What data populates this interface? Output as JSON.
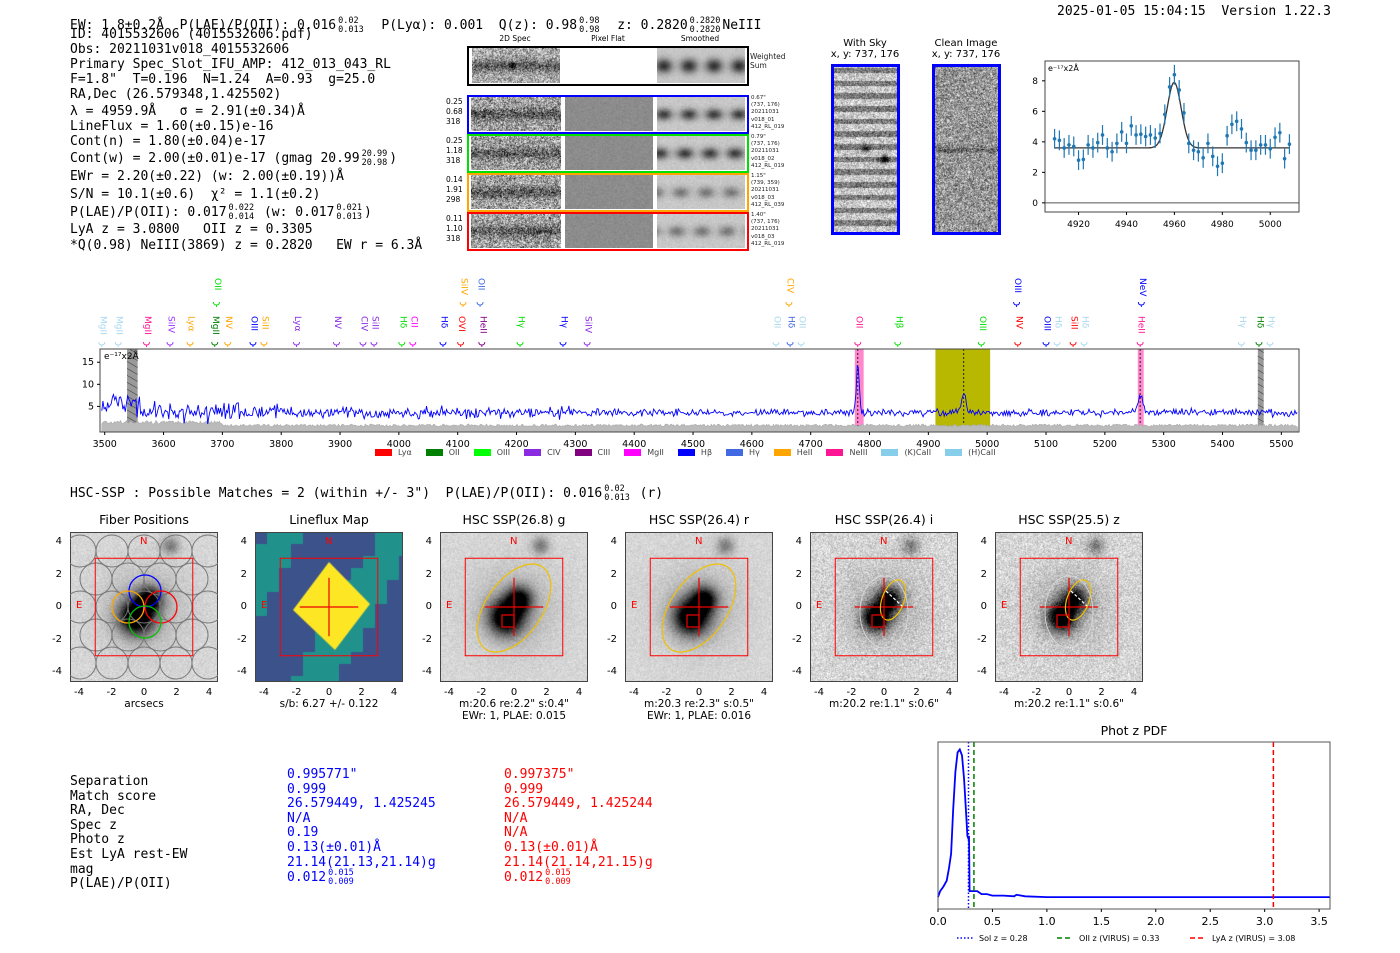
{
  "header": {
    "ew": "EW: 1.8±0.2Å",
    "plae_label": "P(LAE)/P(OII): 0.016",
    "plae_hi": "0.02",
    "plae_lo": "0.013",
    "plya": "P(Lyα): 0.001",
    "qz_label": "Q(z): 0.98",
    "qz_hi": "0.98",
    "qz_lo": "0.98",
    "z_label": "z: 0.2820",
    "z_hi": "0.2820",
    "z_lo": "0.2820",
    "line": "NeIII",
    "datetime": "2025-01-05 15:04:15",
    "version": "Version 1.22.3"
  },
  "info": {
    "id": "ID: 4015532606 (4015532606.pdf)",
    "obs": "Obs: 20211031v018_4015532606",
    "primary": "Primary Spec_Slot_IFU_AMP: 412_013_043_RL",
    "params": "F=1.8\"  T=0.196  N=1.24  A=0.93  g=25.0",
    "radec": "RA,Dec (26.579348,1.425502)",
    "lambda": "λ = 4959.9Å   σ = 2.91(±0.34)Å",
    "lineflux": "LineFlux = 1.60(±0.15)e-16",
    "contn": "Cont(n) = 1.80(±0.04)e-17",
    "contw": "Cont(w) = 2.00(±0.01)e-17 (gmag 20.99",
    "contw_hi": "20.99",
    "contw_lo": "20.98",
    "contw_end": ")",
    "ewr": "EWr = 2.20(±0.22) (w: 2.00(±0.19))Å",
    "sn": "S/N = 10.1(±0.6)  χ² = 1.1(±0.2)",
    "plae": "P(LAE)/P(OII): 0.017",
    "plae_hi": "0.022",
    "plae_lo": "0.014",
    "plae_w": "(w: 0.017",
    "plae_w_hi": "0.021",
    "plae_w_lo": "0.013",
    "plae_end": ")",
    "lyaz": "LyA z = 3.0800   OII z = 0.3305",
    "q": "*Q(0.98) NeIII(3869) z = 0.2820   EW r = 6.3Å"
  },
  "spec2d": {
    "col_titles": [
      "2D Spec",
      "Pixel Flat",
      "Smoothed"
    ],
    "weighted_label": "Weighted\nSum",
    "rows": [
      {
        "color": "#0000ff",
        "left": [
          "0.25",
          "0.68",
          "318"
        ],
        "right": [
          "0.67\"",
          "(737, 176)",
          "20211031",
          "v018_01",
          "412_RL_019"
        ]
      },
      {
        "color": "#00e000",
        "left": [
          "0.25",
          "1.18",
          "318"
        ],
        "right": [
          "0.79\"",
          "(737, 176)",
          "20211031",
          "v018_02",
          "412_RL_019"
        ]
      },
      {
        "color": "#ffa500",
        "left": [
          "0.14",
          "1.91",
          "298"
        ],
        "right": [
          "1.15\"",
          "(739, 359)",
          "20211031",
          "v018_03",
          "412_RL_039"
        ]
      },
      {
        "color": "#ff0000",
        "left": [
          "0.11",
          "1.10",
          "318"
        ],
        "right": [
          "1.40\"",
          "(737, 176)",
          "20211031",
          "v018_03",
          "412_RL_019"
        ]
      }
    ]
  },
  "sky": {
    "with_sky": "With Sky\nx, y: 737, 176",
    "clean": "Clean Image\nx, y: 737, 176"
  },
  "zoom_plot": {
    "type": "scatter",
    "ylabel": "e⁻¹⁷x2Å",
    "xlim": [
      4906,
      5012
    ],
    "ylim": [
      -0.6,
      9.3
    ],
    "xticks": [
      4920,
      4940,
      4960,
      4980,
      5000
    ],
    "yticks": [
      0,
      2,
      4,
      6,
      8
    ],
    "x_start": 4910,
    "x_step": 2,
    "y": [
      4.2,
      4.1,
      3.6,
      3.8,
      3.7,
      2.8,
      2.85,
      3.8,
      3.6,
      3.95,
      4.45,
      3.6,
      3.35,
      3.9,
      4.65,
      3.9,
      5.05,
      4.45,
      4.5,
      4.35,
      4.45,
      4.25,
      4.55,
      5.8,
      7.6,
      8.4,
      7.4,
      5.9,
      3.9,
      3.45,
      3.35,
      2.95,
      3.9,
      3.05,
      2.4,
      2.6,
      4.4,
      5.15,
      5.35,
      4.85,
      3.95,
      3.45,
      3.45,
      3.8,
      3.8,
      3.55,
      4.3,
      4.6,
      2.9,
      3.85
    ],
    "yerr": 0.65,
    "fit": {
      "center": 4959.9,
      "sigma": 2.91,
      "continuum": 3.6,
      "peak": 7.9
    }
  },
  "chart_data": [
    {
      "type": "line",
      "title": "",
      "ylabel": "e⁻¹⁷x2Å",
      "xlim": [
        3492,
        5530
      ],
      "ylim": [
        -0.8,
        18
      ],
      "xticks": [
        3500,
        3600,
        3700,
        3800,
        3900,
        4000,
        4100,
        4200,
        4300,
        4400,
        4500,
        4600,
        4700,
        4800,
        4900,
        5000,
        5100,
        5200,
        5300,
        5400,
        5500
      ],
      "yticks": [
        5,
        10,
        15
      ],
      "continuum": 3.6,
      "features": [
        {
          "x": 4780,
          "peak": 14.5
        },
        {
          "x": 4960,
          "peak": 7.5
        },
        {
          "x": 5260,
          "peak": 7.5
        }
      ],
      "shaded": [
        {
          "from": 3538,
          "to": 3556,
          "color": "#999999",
          "hatch": true
        },
        {
          "from": 4775,
          "to": 4790,
          "color": "#ff88cc"
        },
        {
          "from": 4912,
          "to": 5005,
          "color": "#b8b800"
        },
        {
          "from": 5256,
          "to": 5266,
          "color": "#ff88cc"
        },
        {
          "from": 5460,
          "to": 5470,
          "color": "#999999",
          "hatch": true
        }
      ],
      "vlines": [
        4780,
        4960,
        5260
      ],
      "line_labels": [
        {
          "t": "MgII",
          "c": "#a8d8ee",
          "w": 3495,
          "row": 0
        },
        {
          "t": "MgII",
          "c": "#a8d8ee",
          "w": 3523,
          "row": 0
        },
        {
          "t": "MgII",
          "c": "#ff1493",
          "w": 3571,
          "row": 0
        },
        {
          "t": "SiIV",
          "c": "#9b30ff",
          "w": 3611,
          "row": 0
        },
        {
          "t": "Lyα",
          "c": "#ffa500",
          "w": 3645,
          "row": 0
        },
        {
          "t": "MgII",
          "c": "#008000",
          "w": 3687,
          "row": 0
        },
        {
          "t": "OII",
          "c": "#00dd00",
          "w": 3690,
          "row": 1
        },
        {
          "t": "NV",
          "c": "#ffa500",
          "w": 3709,
          "row": 0
        },
        {
          "t": "OIII",
          "c": "#0000ff",
          "w": 3752,
          "row": 0
        },
        {
          "t": "SiII",
          "c": "#ffa500",
          "w": 3769,
          "row": 0
        },
        {
          "t": "Lyα",
          "c": "#8a2be2",
          "w": 3826,
          "row": 0
        },
        {
          "t": "NV",
          "c": "#8a2be2",
          "w": 3894,
          "row": 0
        },
        {
          "t": "CIV",
          "c": "#8a2be2",
          "w": 3939,
          "row": 0
        },
        {
          "t": "SiII",
          "c": "#8a2be2",
          "w": 3956,
          "row": 0
        },
        {
          "t": "Hδ",
          "c": "#00dd00",
          "w": 4005,
          "row": 0
        },
        {
          "t": "CII",
          "c": "#ff00ff",
          "w": 4019,
          "row": 0
        },
        {
          "t": "Hδ",
          "c": "#0000ff",
          "w": 4075,
          "row": 0
        },
        {
          "t": "OVI",
          "c": "#ff0000",
          "w": 4105,
          "row": 0
        },
        {
          "t": "SiIV",
          "c": "#ffa500",
          "w": 4109,
          "row": 1
        },
        {
          "t": "HeII",
          "c": "#800080",
          "w": 4141,
          "row": 0
        },
        {
          "t": "OII",
          "c": "#4169e1",
          "w": 4138,
          "row": 1
        },
        {
          "t": "Hγ",
          "c": "#00dd00",
          "w": 4206,
          "row": 0
        },
        {
          "t": "Hγ",
          "c": "#0000ff",
          "w": 4279,
          "row": 0
        },
        {
          "t": "SiIV",
          "c": "#8a2be2",
          "w": 4320,
          "row": 0
        },
        {
          "t": "OII",
          "c": "#a8d8ee",
          "w": 4641,
          "row": 0
        },
        {
          "t": "Hδ",
          "c": "#4169e1",
          "w": 4665,
          "row": 0
        },
        {
          "t": "OII",
          "c": "#a8d8ee",
          "w": 4678,
          "row": 0
        },
        {
          "t": "CIV",
          "c": "#ffa500",
          "w": 4663,
          "row": 1
        },
        {
          "t": "OII",
          "c": "#ff1493",
          "w": 4780,
          "row": 0
        },
        {
          "t": "Hβ",
          "c": "#00dd00",
          "w": 4848,
          "row": 0
        },
        {
          "t": "OIII",
          "c": "#00dd00",
          "w": 4990,
          "row": 0
        },
        {
          "t": "NV",
          "c": "#ff0000",
          "w": 5052,
          "row": 0
        },
        {
          "t": "OIII",
          "c": "#0000ff",
          "w": 5050,
          "row": 1
        },
        {
          "t": "OIII",
          "c": "#0000ff",
          "w": 5100,
          "row": 0
        },
        {
          "t": "Hδ",
          "c": "#a8d8ee",
          "w": 5115,
          "row": 0
        },
        {
          "t": "SiII",
          "c": "#ff0000",
          "w": 5146,
          "row": 0
        },
        {
          "t": "Hδ",
          "c": "#a8d8ee",
          "w": 5162,
          "row": 0
        },
        {
          "t": "HeII",
          "c": "#ff1493",
          "w": 5260,
          "row": 0
        },
        {
          "t": "NeV",
          "c": "#0000ff",
          "w": 5262,
          "row": 1
        },
        {
          "t": "Hγ",
          "c": "#a8d8ee",
          "w": 5432,
          "row": 0
        },
        {
          "t": "Hδ",
          "c": "#008000",
          "w": 5462,
          "row": 0
        },
        {
          "t": "Hγ",
          "c": "#a8d8ee",
          "w": 5474,
          "row": 0
        }
      ],
      "legend": [
        {
          "label": "Lyα",
          "color": "#ff0000"
        },
        {
          "label": "OII",
          "color": "#008000"
        },
        {
          "label": "OIII",
          "color": "#00ff00"
        },
        {
          "label": "CIV",
          "color": "#8a2be2"
        },
        {
          "label": "CIII",
          "color": "#800080"
        },
        {
          "label": "MgII",
          "color": "#ff00ff"
        },
        {
          "label": "Hβ",
          "color": "#0000ff"
        },
        {
          "label": "Hγ",
          "color": "#4169e1"
        },
        {
          "label": "HeII",
          "color": "#ffa500"
        },
        {
          "label": "NeIII",
          "color": "#ff1493"
        },
        {
          "label": "(K)CaII",
          "color": "#87ceeb"
        },
        {
          "label": "(H)CaII",
          "color": "#87ceeb"
        }
      ],
      "legend_position": "bottom"
    },
    {
      "type": "line",
      "title": "Phot z PDF",
      "xlim": [
        0,
        3.6
      ],
      "ylim": [
        -0.07,
        1.05
      ],
      "xticks": [
        0.0,
        0.5,
        1.0,
        1.5,
        2.0,
        2.5,
        3.0,
        3.5
      ],
      "z": [
        0,
        0.02,
        0.05,
        0.08,
        0.1,
        0.12,
        0.14,
        0.16,
        0.18,
        0.2,
        0.22,
        0.24,
        0.26,
        0.27,
        0.28,
        0.285,
        0.29,
        0.3,
        0.33,
        0.36,
        0.4,
        0.45,
        0.5,
        0.6,
        0.7,
        0.72,
        0.8,
        1.0,
        1.5,
        2.0,
        3.0,
        3.6
      ],
      "pdf": [
        0.01,
        0.05,
        0.08,
        0.12,
        0.2,
        0.3,
        0.6,
        0.85,
        0.98,
        1.0,
        0.96,
        0.8,
        0.55,
        0.42,
        0.4,
        0.42,
        0.05,
        0.05,
        0.05,
        0.05,
        0.03,
        0.03,
        0.02,
        0.02,
        0.015,
        0.025,
        0.015,
        0.01,
        0.01,
        0.01,
        0.01,
        0.01
      ],
      "vlines": [
        {
          "x": 0.28,
          "color": "#0000ff",
          "style": "dotted",
          "label": "Sol z = 0.28"
        },
        {
          "x": 0.33,
          "color": "#008000",
          "style": "dashed",
          "label": "OII z (VIRUS) = 0.33"
        },
        {
          "x": 3.08,
          "color": "#ff0000",
          "style": "dashed",
          "label": "LyA z (VIRUS) = 3.08"
        }
      ],
      "legend_position": "bottom"
    }
  ],
  "hsc": {
    "summary": "HSC-SSP : Possible Matches = 2 (within +/- 3\")  P(LAE)/P(OII): 0.016",
    "summary_hi": "0.02",
    "summary_lo": "0.013",
    "summary_end": "(r)",
    "ticks": [
      "4",
      "2",
      "0",
      "-2",
      "-4"
    ],
    "xticks": [
      "-4",
      "-2",
      "0",
      "2",
      "4"
    ],
    "north": "N",
    "east": "E",
    "panels": [
      {
        "title": "Fiber Positions",
        "kind": "fiber",
        "caption": [
          "arcsecs"
        ]
      },
      {
        "title": "Lineflux Map",
        "kind": "flux",
        "caption": [
          "s/b: 6.27 +/- 0.122"
        ]
      },
      {
        "title": "HSC SSP(26.8) g",
        "kind": "big",
        "caption": [
          "m:20.6  re:2.2\"  s:0.4\"",
          "EWr: 1, PLAE: 0.015"
        ]
      },
      {
        "title": "HSC SSP(26.4) r",
        "kind": "big",
        "caption": [
          "m:20.3  re:2.3\"  s:0.5\"",
          "EWr: 1, PLAE: 0.016"
        ]
      },
      {
        "title": "HSC SSP(26.4) i",
        "kind": "small",
        "caption": [
          "m:20.2  re:1.1\"  s:0.6\""
        ]
      },
      {
        "title": "HSC SSP(25.5) z",
        "kind": "small",
        "caption": [
          "m:20.2  re:1.1\"  s:0.6\""
        ]
      }
    ]
  },
  "matches": {
    "labels": [
      "Separation",
      "Match score",
      "RA, Dec",
      "Spec z",
      "Photo z",
      "Est LyA rest-EW",
      "mag",
      "P(LAE)/P(OII)"
    ],
    "m1": {
      "color": "#0000ff",
      "vals": [
        "0.995771\"",
        "0.999",
        "26.579449, 1.425245",
        "N/A",
        "0.19",
        "0.13(±0.01)Å",
        "21.14(21.13,21.14)g",
        "0.012"
      ],
      "hi": "0.015",
      "lo": "0.009"
    },
    "m2": {
      "color": "#ff0000",
      "vals": [
        "0.997375\"",
        "0.999",
        "26.579449, 1.425244",
        "N/A",
        "N/A",
        "0.13(±0.01)Å",
        "21.14(21.14,21.15)g",
        "0.012"
      ],
      "hi": "0.015",
      "lo": "0.009"
    }
  }
}
